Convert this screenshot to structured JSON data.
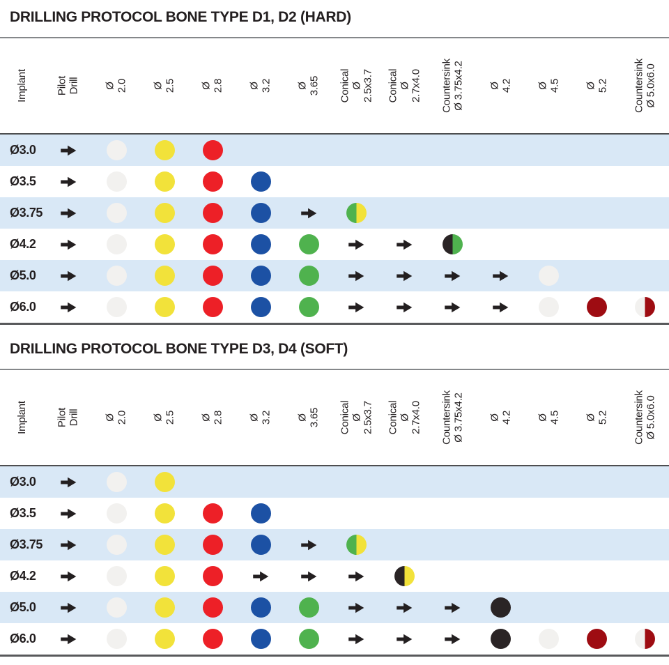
{
  "colors": {
    "text": "#231f20",
    "row_alt_bg": "#d9e8f6",
    "rule_light": "#85878a",
    "rule_dark": "#58595b",
    "arrow": "#231f20",
    "dot_white": "#f2f1ef",
    "dot_yellow": "#f2e23a",
    "dot_red": "#ed2027",
    "dot_blue": "#1c51a4",
    "dot_green": "#4fb24e",
    "dot_black": "#2a2425",
    "dot_darkred": "#9e0c12"
  },
  "columns": [
    {
      "key": "implant",
      "label": "Implant"
    },
    {
      "key": "pilot-drill",
      "label": "Pilot\nDrill"
    },
    {
      "key": "drill-2-0",
      "label": "Ø 2.0"
    },
    {
      "key": "drill-2-5",
      "label": "Ø 2.5"
    },
    {
      "key": "drill-2-8",
      "label": "Ø 2.8"
    },
    {
      "key": "drill-3-2",
      "label": "Ø 3.2"
    },
    {
      "key": "drill-3-65",
      "label": "Ø 3.65"
    },
    {
      "key": "conical-2-5x3-7",
      "label": "Conical\nØ 2.5x3.7"
    },
    {
      "key": "conical-2-7x4-0",
      "label": "Conical\nØ 2.7x4.0"
    },
    {
      "key": "countersink-3-75x4-2",
      "label": "Countersink\nØ 3.75x4.2"
    },
    {
      "key": "drill-4-2",
      "label": "Ø 4.2"
    },
    {
      "key": "drill-4-5",
      "label": "Ø 4.5"
    },
    {
      "key": "drill-5-2",
      "label": "Ø 5.2"
    },
    {
      "key": "countersink-5-0x6-0",
      "label": "Countersink\nØ 5.0x6.0"
    }
  ],
  "tables": [
    {
      "title": "DRILLING PROTOCOL BONE TYPE D1, D2 (HARD)",
      "rows": [
        {
          "implant": "Ø3.0",
          "cells": [
            "arrow",
            "white",
            "yellow",
            "red",
            "",
            "",
            "",
            "",
            "",
            "",
            "",
            "",
            ""
          ]
        },
        {
          "implant": "Ø3.5",
          "cells": [
            "arrow",
            "white",
            "yellow",
            "red",
            "blue",
            "",
            "",
            "",
            "",
            "",
            "",
            "",
            ""
          ]
        },
        {
          "implant": "Ø3.75",
          "cells": [
            "arrow",
            "white",
            "yellow",
            "red",
            "blue",
            "arrow",
            "split:green/yellow",
            "",
            "",
            "",
            "",
            "",
            ""
          ]
        },
        {
          "implant": "Ø4.2",
          "cells": [
            "arrow",
            "white",
            "yellow",
            "red",
            "blue",
            "green",
            "arrow",
            "arrow",
            "split:black/green",
            "",
            "",
            "",
            ""
          ]
        },
        {
          "implant": "Ø5.0",
          "cells": [
            "arrow",
            "white",
            "yellow",
            "red",
            "blue",
            "green",
            "arrow",
            "arrow",
            "arrow",
            "arrow",
            "white",
            "",
            ""
          ]
        },
        {
          "implant": "Ø6.0",
          "cells": [
            "arrow",
            "white",
            "yellow",
            "red",
            "blue",
            "green",
            "arrow",
            "arrow",
            "arrow",
            "arrow",
            "white",
            "darkred",
            "split:white/darkred"
          ]
        }
      ]
    },
    {
      "title": "DRILLING PROTOCOL BONE TYPE D3, D4 (SOFT)",
      "rows": [
        {
          "implant": "Ø3.0",
          "cells": [
            "arrow",
            "white",
            "yellow",
            "",
            "",
            "",
            "",
            "",
            "",
            "",
            "",
            "",
            ""
          ]
        },
        {
          "implant": "Ø3.5",
          "cells": [
            "arrow",
            "white",
            "yellow",
            "red",
            "blue",
            "",
            "",
            "",
            "",
            "",
            "",
            "",
            ""
          ]
        },
        {
          "implant": "Ø3.75",
          "cells": [
            "arrow",
            "white",
            "yellow",
            "red",
            "blue",
            "arrow",
            "split:green/yellow",
            "",
            "",
            "",
            "",
            "",
            ""
          ]
        },
        {
          "implant": "Ø4.2",
          "cells": [
            "arrow",
            "white",
            "yellow",
            "red",
            "arrow",
            "arrow",
            "arrow",
            "split:black/yellow",
            "",
            "",
            "",
            "",
            ""
          ]
        },
        {
          "implant": "Ø5.0",
          "cells": [
            "arrow",
            "white",
            "yellow",
            "red",
            "blue",
            "green",
            "arrow",
            "arrow",
            "arrow",
            "black",
            "",
            "",
            ""
          ]
        },
        {
          "implant": "Ø6.0",
          "cells": [
            "arrow",
            "white",
            "yellow",
            "red",
            "blue",
            "green",
            "arrow",
            "arrow",
            "arrow",
            "black",
            "white",
            "darkred",
            "split:white/darkred"
          ]
        }
      ]
    }
  ]
}
